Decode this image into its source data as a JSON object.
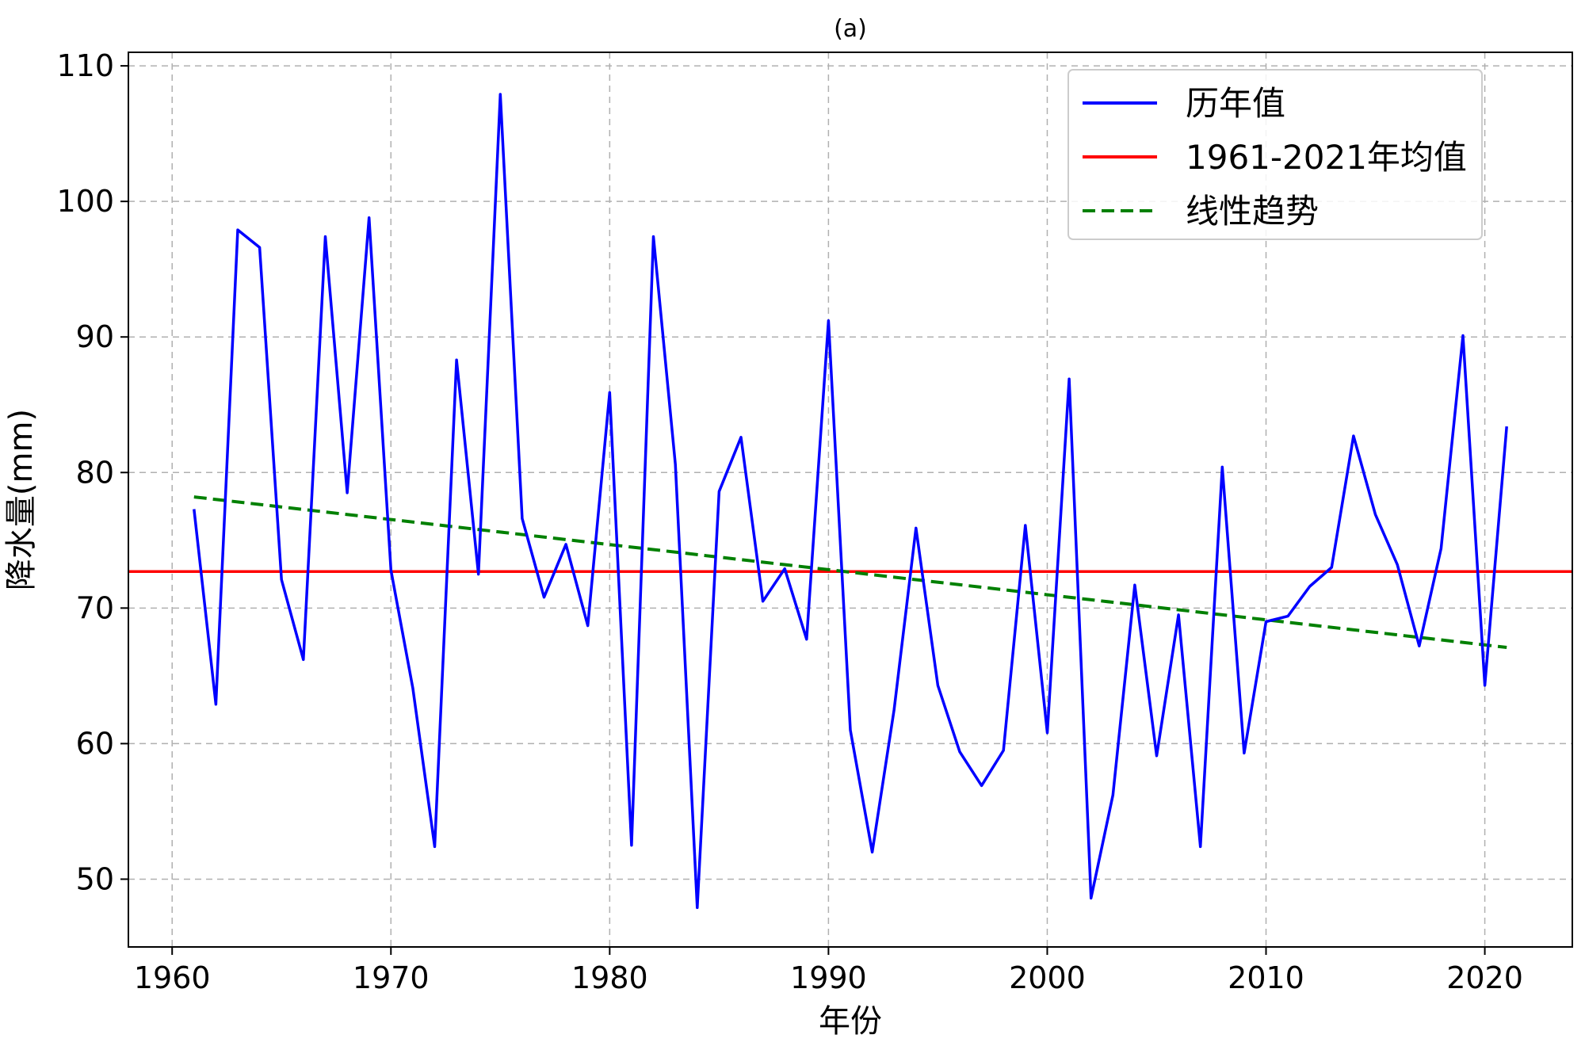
{
  "chart_data": {
    "type": "line",
    "title": "(a)",
    "xlabel": "年份",
    "ylabel": "降水量(mm)",
    "xlim": [
      1958,
      2024
    ],
    "ylim": [
      45,
      111
    ],
    "x_ticks": [
      1960,
      1970,
      1980,
      1990,
      2000,
      2010,
      2020
    ],
    "y_ticks": [
      50,
      60,
      70,
      80,
      90,
      100,
      110
    ],
    "grid": true,
    "legend_position": "top-right",
    "series": [
      {
        "name": "历年值",
        "color": "#0000ff",
        "style": "solid",
        "x": [
          1961,
          1962,
          1963,
          1964,
          1965,
          1966,
          1967,
          1968,
          1969,
          1970,
          1971,
          1972,
          1973,
          1974,
          1975,
          1976,
          1977,
          1978,
          1979,
          1980,
          1981,
          1982,
          1983,
          1984,
          1985,
          1986,
          1987,
          1988,
          1989,
          1990,
          1991,
          1992,
          1993,
          1994,
          1995,
          1996,
          1997,
          1998,
          1999,
          2000,
          2001,
          2002,
          2003,
          2004,
          2005,
          2006,
          2007,
          2008,
          2009,
          2010,
          2011,
          2012,
          2013,
          2014,
          2015,
          2016,
          2017,
          2018,
          2019,
          2020,
          2021
        ],
        "values": [
          77.3,
          62.9,
          97.9,
          96.6,
          72.1,
          66.2,
          97.4,
          78.5,
          98.8,
          72.8,
          64.1,
          52.4,
          88.3,
          72.5,
          107.9,
          76.6,
          70.8,
          74.7,
          68.7,
          85.9,
          52.5,
          97.4,
          80.6,
          47.9,
          78.6,
          82.6,
          70.5,
          72.9,
          67.7,
          91.2,
          61.0,
          52.0,
          62.5,
          75.9,
          64.3,
          59.4,
          56.9,
          59.5,
          76.1,
          60.8,
          86.9,
          48.6,
          56.2,
          71.7,
          59.1,
          69.5,
          52.4,
          80.4,
          59.3,
          69.0,
          69.4,
          71.6,
          73.0,
          82.7,
          76.9,
          73.2,
          67.2,
          74.4,
          90.1,
          64.3,
          83.4
        ]
      },
      {
        "name": "1961-2021年均值",
        "color": "#ff0000",
        "style": "solid",
        "x": [
          1958,
          2024
        ],
        "values": [
          72.7,
          72.7
        ]
      },
      {
        "name": "线性趋势",
        "color": "#008000",
        "style": "dashed",
        "x": [
          1961,
          2021
        ],
        "values": [
          78.2,
          67.1
        ]
      }
    ]
  }
}
